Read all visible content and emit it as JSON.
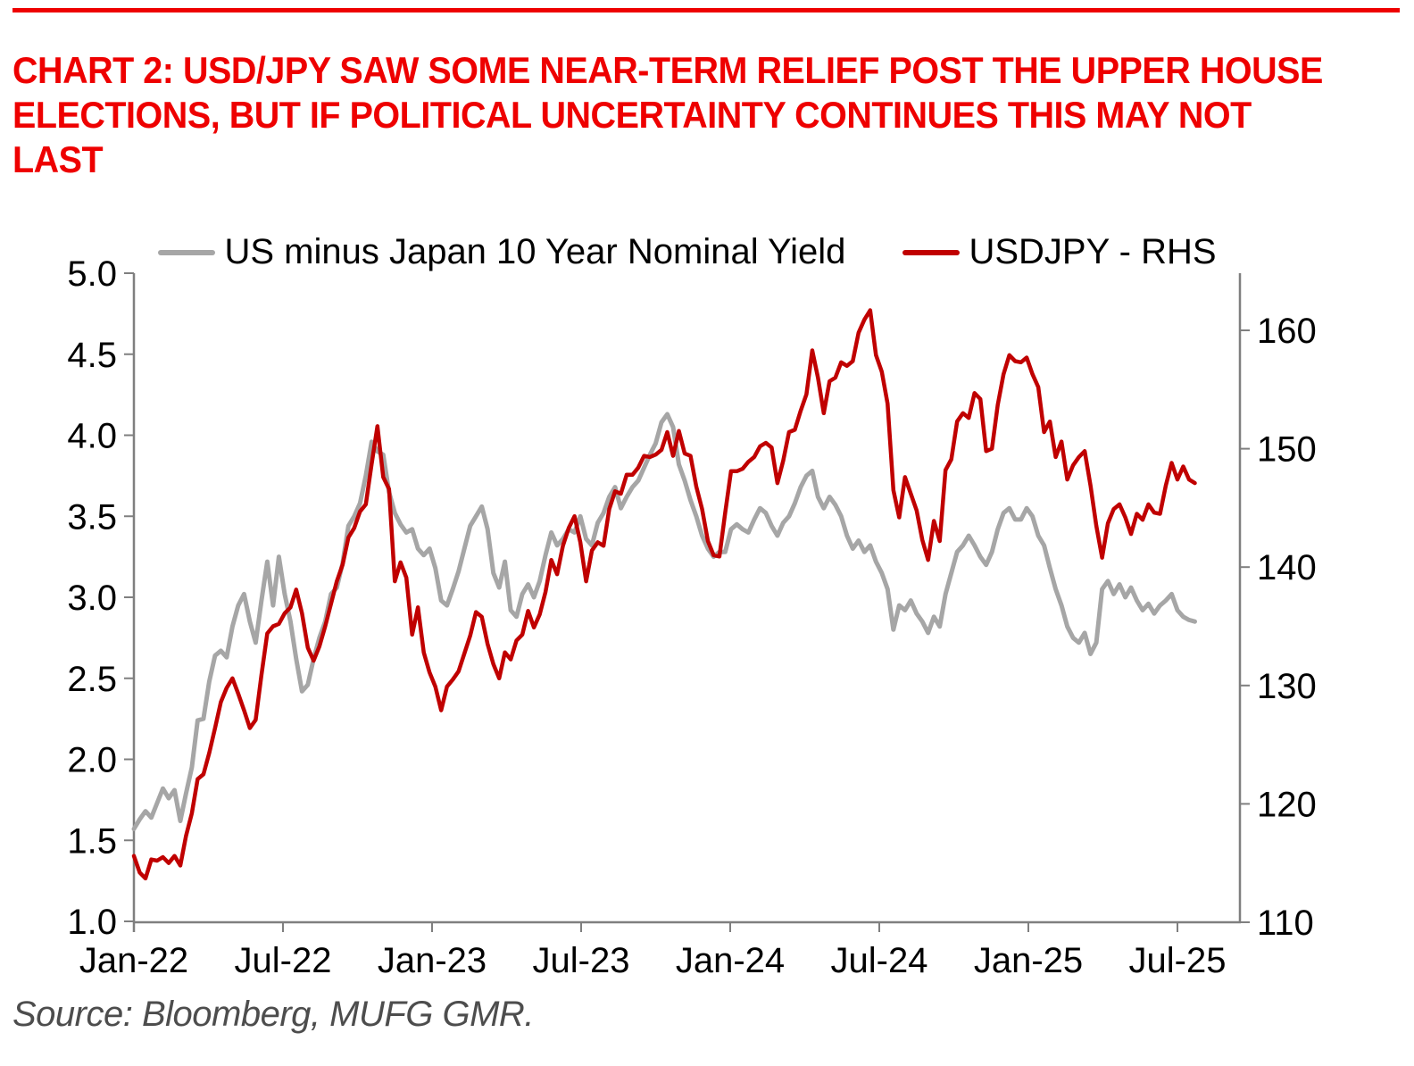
{
  "colors": {
    "accent_red": "#EE0000",
    "series_red": "#C00000",
    "series_gray": "#A6A6A6",
    "axis_gray": "#7F7F7F"
  },
  "header": {
    "title_line1": "CHART 2: USD/JPY SAW SOME NEAR-TERM RELIEF POST THE UPPER HOUSE",
    "title_line2": "ELECTIONS, BUT IF POLITICAL UNCERTAINTY CONTINUES THIS MAY NOT",
    "title_line3": "LAST"
  },
  "legend": {
    "items": [
      {
        "label": "US minus Japan 10 Year Nominal Yield",
        "color": "#A6A6A6"
      },
      {
        "label": "USDJPY - RHS",
        "color": "#C00000"
      }
    ]
  },
  "source": "Source: Bloomberg, MUFG GMR.",
  "chart_data": {
    "type": "line",
    "title": "CHART 2: USD/JPY SAW SOME NEAR-TERM RELIEF POST THE UPPER HOUSE ELECTIONS, BUT IF POLITICAL UNCERTAINTY CONTINUES THIS MAY NOT LAST",
    "grid": false,
    "legend_position": "top",
    "x_axis": {
      "tick_labels": [
        "Jan-22",
        "Jul-22",
        "Jan-23",
        "Jul-23",
        "Jan-24",
        "Jul-24",
        "Jan-25",
        "Jul-25"
      ],
      "months_between_labels": 6,
      "months_span": 42.7,
      "frequency": "weekly"
    },
    "left_axis": {
      "tick_labels": [
        "1.0",
        "1.5",
        "2.0",
        "2.5",
        "3.0",
        "3.5",
        "4.0",
        "4.5",
        "5.0"
      ],
      "range": [
        1.0,
        5.0
      ]
    },
    "right_axis": {
      "tick_labels": [
        "110",
        "120",
        "130",
        "140",
        "150",
        "160"
      ],
      "range": [
        110,
        165
      ]
    },
    "series": [
      {
        "name": "US minus Japan 10 Year Nominal Yield",
        "axis": "left",
        "color": "#A6A6A6",
        "values": [
          1.57,
          1.63,
          1.68,
          1.64,
          1.73,
          1.82,
          1.76,
          1.81,
          1.62,
          1.79,
          1.95,
          2.24,
          2.25,
          2.48,
          2.64,
          2.67,
          2.63,
          2.82,
          2.95,
          3.02,
          2.85,
          2.72,
          2.98,
          3.22,
          2.95,
          3.25,
          3.02,
          2.85,
          2.62,
          2.42,
          2.46,
          2.62,
          2.75,
          2.85,
          3.02,
          3.06,
          3.21,
          3.44,
          3.5,
          3.58,
          3.75,
          3.96,
          3.9,
          3.88,
          3.65,
          3.52,
          3.45,
          3.4,
          3.42,
          3.3,
          3.26,
          3.3,
          3.18,
          2.98,
          2.95,
          3.05,
          3.16,
          3.3,
          3.44,
          3.5,
          3.56,
          3.42,
          3.15,
          3.06,
          3.22,
          2.92,
          2.88,
          3.02,
          3.08,
          3.0,
          3.1,
          3.26,
          3.4,
          3.32,
          3.36,
          3.42,
          3.4,
          3.5,
          3.36,
          3.32,
          3.46,
          3.52,
          3.62,
          3.68,
          3.55,
          3.62,
          3.68,
          3.72,
          3.8,
          3.88,
          3.95,
          4.08,
          4.13,
          4.05,
          3.82,
          3.72,
          3.6,
          3.5,
          3.38,
          3.3,
          3.25,
          3.28,
          3.28,
          3.42,
          3.45,
          3.42,
          3.4,
          3.48,
          3.55,
          3.52,
          3.44,
          3.38,
          3.46,
          3.5,
          3.58,
          3.68,
          3.75,
          3.78,
          3.62,
          3.55,
          3.62,
          3.57,
          3.5,
          3.38,
          3.3,
          3.35,
          3.28,
          3.32,
          3.22,
          3.15,
          3.05,
          2.8,
          2.95,
          2.92,
          2.98,
          2.9,
          2.85,
          2.78,
          2.88,
          2.82,
          3.02,
          3.15,
          3.28,
          3.32,
          3.38,
          3.32,
          3.25,
          3.2,
          3.28,
          3.42,
          3.52,
          3.55,
          3.48,
          3.48,
          3.55,
          3.5,
          3.38,
          3.32,
          3.18,
          3.05,
          2.95,
          2.82,
          2.75,
          2.72,
          2.78,
          2.65,
          2.72,
          3.05,
          3.1,
          3.02,
          3.08,
          3.0,
          3.06,
          2.98,
          2.92,
          2.96,
          2.9,
          2.95,
          2.98,
          3.02,
          2.92,
          2.88,
          2.86,
          2.85
        ]
      },
      {
        "name": "USDJPY - RHS",
        "axis": "right",
        "color": "#C00000",
        "values": [
          115.6,
          114.2,
          113.7,
          115.3,
          115.2,
          115.5,
          115.0,
          115.6,
          114.8,
          117.3,
          119.2,
          122.1,
          122.5,
          124.3,
          126.4,
          128.6,
          129.8,
          130.6,
          129.3,
          127.9,
          126.4,
          127.1,
          130.9,
          134.4,
          135.0,
          135.2,
          136.1,
          136.6,
          138.1,
          136.1,
          133.2,
          132.1,
          133.3,
          135.0,
          136.9,
          138.8,
          140.2,
          142.5,
          143.3,
          144.7,
          145.3,
          148.7,
          151.9,
          147.6,
          146.6,
          138.8,
          140.4,
          139.1,
          134.3,
          136.6,
          132.8,
          131.1,
          129.9,
          127.9,
          129.9,
          130.5,
          131.2,
          132.7,
          134.2,
          136.2,
          135.8,
          133.5,
          131.8,
          130.6,
          132.8,
          132.2,
          133.8,
          134.3,
          136.3,
          134.9,
          136.0,
          137.9,
          140.6,
          139.4,
          141.8,
          143.3,
          144.3,
          142.1,
          138.8,
          141.4,
          142.1,
          141.8,
          144.9,
          146.4,
          146.2,
          147.8,
          147.8,
          148.4,
          149.4,
          149.3,
          149.5,
          149.9,
          151.4,
          149.4,
          151.5,
          149.6,
          149.4,
          146.8,
          144.9,
          142.2,
          141.0,
          140.9,
          144.6,
          148.1,
          148.1,
          148.3,
          148.9,
          149.3,
          150.2,
          150.5,
          150.1,
          147.1,
          149.0,
          151.4,
          151.6,
          153.2,
          154.6,
          158.3,
          156.0,
          153.0,
          155.7,
          156.0,
          157.3,
          157.0,
          157.4,
          159.8,
          160.9,
          161.7,
          157.9,
          156.5,
          153.8,
          146.5,
          144.2,
          147.6,
          146.2,
          144.8,
          142.3,
          140.6,
          143.9,
          142.2,
          148.2,
          149.1,
          152.3,
          153.0,
          152.6,
          154.7,
          154.2,
          149.8,
          150.0,
          153.7,
          156.3,
          157.9,
          157.4,
          157.3,
          157.7,
          156.3,
          155.2,
          151.4,
          152.3,
          149.3,
          150.6,
          147.4,
          148.6,
          149.3,
          149.8,
          146.9,
          143.5,
          140.8,
          143.7,
          144.9,
          145.3,
          144.2,
          142.8,
          144.5,
          144.0,
          145.3,
          144.6,
          144.5,
          146.9,
          148.8,
          147.4,
          148.5,
          147.4,
          147.1
        ]
      }
    ]
  }
}
